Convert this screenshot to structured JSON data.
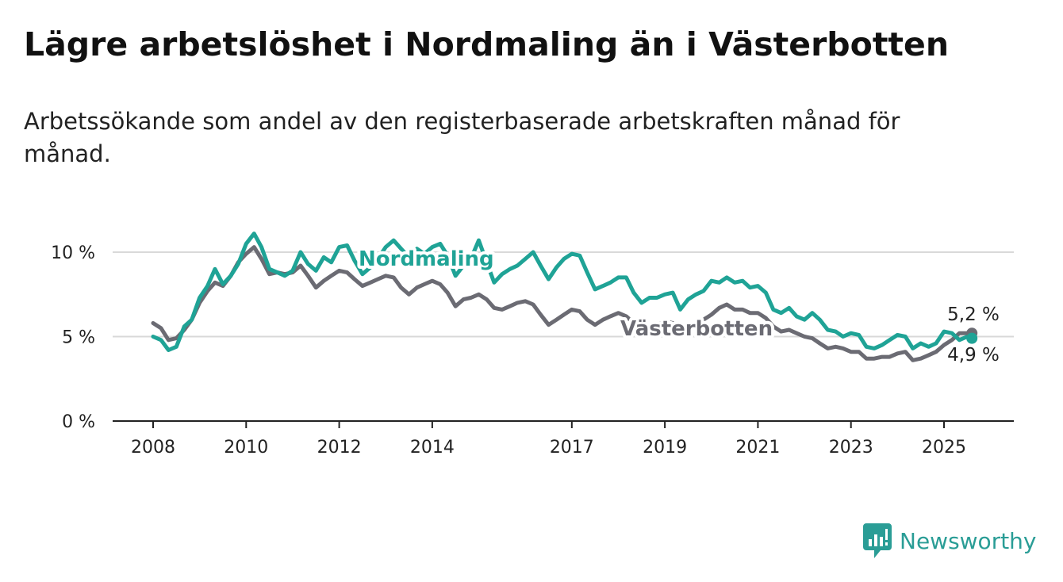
{
  "title": "Lägre arbetslöshet i Nordmaling än i Västerbotten",
  "subtitle": "Arbetssökande som andel av den registerbaserade arbetskraften månad för månad.",
  "brand": "Newsworthy",
  "colors": {
    "nordmaling": "#1fa396",
    "vasterbotten": "#6b6b73",
    "grid": "#d9d9d9",
    "axis": "#222222"
  },
  "chart_data": {
    "type": "line",
    "title": "Lägre arbetslöshet i Nordmaling än i Västerbotten",
    "subtitle": "Arbetssökande som andel av den registerbaserade arbetskraften månad för månad.",
    "xlabel": "",
    "ylabel": "",
    "xlim": [
      2007.6,
      2026.5
    ],
    "ylim": [
      0,
      10
    ],
    "x_ticks": [
      2008,
      2010,
      2012,
      2014,
      2017,
      2019,
      2021,
      2023,
      2025
    ],
    "x_tick_labels": [
      "2008",
      "2010",
      "2012",
      "2014",
      "2017",
      "2019",
      "2021",
      "2023",
      "2025"
    ],
    "y_ticks": [
      0,
      5,
      10
    ],
    "y_tick_labels": [
      "0 %",
      "5 %",
      "10 %"
    ],
    "grid": "horizontal",
    "legend": "inline labels",
    "series": [
      {
        "name": "Nordmaling",
        "end_label": "4,9 %",
        "points": [
          [
            2008.0,
            5.0
          ],
          [
            2008.17,
            4.8
          ],
          [
            2008.33,
            4.2
          ],
          [
            2008.5,
            4.4
          ],
          [
            2008.67,
            5.6
          ],
          [
            2008.83,
            6.0
          ],
          [
            2009.0,
            7.3
          ],
          [
            2009.17,
            8.0
          ],
          [
            2009.33,
            9.0
          ],
          [
            2009.5,
            8.1
          ],
          [
            2009.67,
            8.6
          ],
          [
            2009.83,
            9.3
          ],
          [
            2010.0,
            10.5
          ],
          [
            2010.17,
            11.1
          ],
          [
            2010.33,
            10.3
          ],
          [
            2010.5,
            9.0
          ],
          [
            2010.67,
            8.8
          ],
          [
            2010.83,
            8.6
          ],
          [
            2011.0,
            8.9
          ],
          [
            2011.17,
            10.0
          ],
          [
            2011.33,
            9.3
          ],
          [
            2011.5,
            8.9
          ],
          [
            2011.67,
            9.7
          ],
          [
            2011.83,
            9.4
          ],
          [
            2012.0,
            10.3
          ],
          [
            2012.17,
            10.4
          ],
          [
            2012.33,
            9.5
          ],
          [
            2012.5,
            8.7
          ],
          [
            2012.67,
            9.1
          ],
          [
            2012.83,
            9.6
          ],
          [
            2013.0,
            10.3
          ],
          [
            2013.17,
            10.7
          ],
          [
            2013.33,
            10.2
          ],
          [
            2013.5,
            9.7
          ],
          [
            2013.67,
            10.2
          ],
          [
            2013.83,
            9.9
          ],
          [
            2014.0,
            10.3
          ],
          [
            2014.17,
            10.5
          ],
          [
            2014.33,
            9.8
          ],
          [
            2014.5,
            8.6
          ],
          [
            2014.67,
            9.2
          ],
          [
            2014.83,
            9.6
          ],
          [
            2015.0,
            10.7
          ],
          [
            2015.17,
            9.4
          ],
          [
            2015.33,
            8.2
          ],
          [
            2015.5,
            8.7
          ],
          [
            2015.67,
            9.0
          ],
          [
            2015.83,
            9.2
          ],
          [
            2016.0,
            9.6
          ],
          [
            2016.17,
            10.0
          ],
          [
            2016.33,
            9.2
          ],
          [
            2016.5,
            8.4
          ],
          [
            2016.67,
            9.1
          ],
          [
            2016.83,
            9.6
          ],
          [
            2017.0,
            9.9
          ],
          [
            2017.17,
            9.8
          ],
          [
            2017.33,
            8.8
          ],
          [
            2017.5,
            7.8
          ],
          [
            2017.67,
            8.0
          ],
          [
            2017.83,
            8.2
          ],
          [
            2018.0,
            8.5
          ],
          [
            2018.17,
            8.5
          ],
          [
            2018.33,
            7.6
          ],
          [
            2018.5,
            7.0
          ],
          [
            2018.67,
            7.3
          ],
          [
            2018.83,
            7.3
          ],
          [
            2019.0,
            7.5
          ],
          [
            2019.17,
            7.6
          ],
          [
            2019.33,
            6.6
          ],
          [
            2019.5,
            7.2
          ],
          [
            2019.67,
            7.5
          ],
          [
            2019.83,
            7.7
          ],
          [
            2020.0,
            8.3
          ],
          [
            2020.17,
            8.2
          ],
          [
            2020.33,
            8.5
          ],
          [
            2020.5,
            8.2
          ],
          [
            2020.67,
            8.3
          ],
          [
            2020.83,
            7.9
          ],
          [
            2021.0,
            8.0
          ],
          [
            2021.17,
            7.6
          ],
          [
            2021.33,
            6.6
          ],
          [
            2021.5,
            6.4
          ],
          [
            2021.67,
            6.7
          ],
          [
            2021.83,
            6.2
          ],
          [
            2022.0,
            6.0
          ],
          [
            2022.17,
            6.4
          ],
          [
            2022.33,
            6.0
          ],
          [
            2022.5,
            5.4
          ],
          [
            2022.67,
            5.3
          ],
          [
            2022.83,
            5.0
          ],
          [
            2023.0,
            5.2
          ],
          [
            2023.17,
            5.1
          ],
          [
            2023.33,
            4.4
          ],
          [
            2023.5,
            4.3
          ],
          [
            2023.67,
            4.5
          ],
          [
            2023.83,
            4.8
          ],
          [
            2024.0,
            5.1
          ],
          [
            2024.17,
            5.0
          ],
          [
            2024.33,
            4.3
          ],
          [
            2024.5,
            4.6
          ],
          [
            2024.67,
            4.4
          ],
          [
            2024.83,
            4.6
          ],
          [
            2025.0,
            5.3
          ],
          [
            2025.17,
            5.2
          ],
          [
            2025.33,
            4.8
          ],
          [
            2025.5,
            5.0
          ],
          [
            2025.6,
            4.9
          ]
        ]
      },
      {
        "name": "Västerbotten",
        "end_label": "5,2 %",
        "points": [
          [
            2008.0,
            5.8
          ],
          [
            2008.17,
            5.5
          ],
          [
            2008.33,
            4.8
          ],
          [
            2008.5,
            4.9
          ],
          [
            2008.67,
            5.4
          ],
          [
            2008.83,
            6.0
          ],
          [
            2009.0,
            7.0
          ],
          [
            2009.17,
            7.7
          ],
          [
            2009.33,
            8.2
          ],
          [
            2009.5,
            8.0
          ],
          [
            2009.67,
            8.6
          ],
          [
            2009.83,
            9.4
          ],
          [
            2010.0,
            9.9
          ],
          [
            2010.17,
            10.3
          ],
          [
            2010.33,
            9.6
          ],
          [
            2010.5,
            8.7
          ],
          [
            2010.67,
            8.8
          ],
          [
            2010.83,
            8.7
          ],
          [
            2011.0,
            8.8
          ],
          [
            2011.17,
            9.2
          ],
          [
            2011.33,
            8.6
          ],
          [
            2011.5,
            7.9
          ],
          [
            2011.67,
            8.3
          ],
          [
            2011.83,
            8.6
          ],
          [
            2012.0,
            8.9
          ],
          [
            2012.17,
            8.8
          ],
          [
            2012.33,
            8.4
          ],
          [
            2012.5,
            8.0
          ],
          [
            2012.67,
            8.2
          ],
          [
            2012.83,
            8.4
          ],
          [
            2013.0,
            8.6
          ],
          [
            2013.17,
            8.5
          ],
          [
            2013.33,
            7.9
          ],
          [
            2013.5,
            7.5
          ],
          [
            2013.67,
            7.9
          ],
          [
            2013.83,
            8.1
          ],
          [
            2014.0,
            8.3
          ],
          [
            2014.17,
            8.1
          ],
          [
            2014.33,
            7.6
          ],
          [
            2014.5,
            6.8
          ],
          [
            2014.67,
            7.2
          ],
          [
            2014.83,
            7.3
          ],
          [
            2015.0,
            7.5
          ],
          [
            2015.17,
            7.2
          ],
          [
            2015.33,
            6.7
          ],
          [
            2015.5,
            6.6
          ],
          [
            2015.67,
            6.8
          ],
          [
            2015.83,
            7.0
          ],
          [
            2016.0,
            7.1
          ],
          [
            2016.17,
            6.9
          ],
          [
            2016.33,
            6.3
          ],
          [
            2016.5,
            5.7
          ],
          [
            2016.67,
            6.0
          ],
          [
            2016.83,
            6.3
          ],
          [
            2017.0,
            6.6
          ],
          [
            2017.17,
            6.5
          ],
          [
            2017.33,
            6.0
          ],
          [
            2017.5,
            5.7
          ],
          [
            2017.67,
            6.0
          ],
          [
            2017.83,
            6.2
          ],
          [
            2018.0,
            6.4
          ],
          [
            2018.17,
            6.2
          ],
          [
            2018.33,
            5.8
          ],
          [
            2018.5,
            5.3
          ],
          [
            2018.67,
            5.5
          ],
          [
            2018.83,
            5.7
          ],
          [
            2019.0,
            5.9
          ],
          [
            2019.17,
            5.8
          ],
          [
            2019.33,
            5.4
          ],
          [
            2019.5,
            5.6
          ],
          [
            2019.67,
            5.8
          ],
          [
            2019.83,
            6.0
          ],
          [
            2020.0,
            6.3
          ],
          [
            2020.17,
            6.7
          ],
          [
            2020.33,
            6.9
          ],
          [
            2020.5,
            6.6
          ],
          [
            2020.67,
            6.6
          ],
          [
            2020.83,
            6.4
          ],
          [
            2021.0,
            6.4
          ],
          [
            2021.17,
            6.1
          ],
          [
            2021.33,
            5.6
          ],
          [
            2021.5,
            5.3
          ],
          [
            2021.67,
            5.4
          ],
          [
            2021.83,
            5.2
          ],
          [
            2022.0,
            5.0
          ],
          [
            2022.17,
            4.9
          ],
          [
            2022.33,
            4.6
          ],
          [
            2022.5,
            4.3
          ],
          [
            2022.67,
            4.4
          ],
          [
            2022.83,
            4.3
          ],
          [
            2023.0,
            4.1
          ],
          [
            2023.17,
            4.1
          ],
          [
            2023.33,
            3.7
          ],
          [
            2023.5,
            3.7
          ],
          [
            2023.67,
            3.8
          ],
          [
            2023.83,
            3.8
          ],
          [
            2024.0,
            4.0
          ],
          [
            2024.17,
            4.1
          ],
          [
            2024.33,
            3.6
          ],
          [
            2024.5,
            3.7
          ],
          [
            2024.67,
            3.9
          ],
          [
            2024.83,
            4.1
          ],
          [
            2025.0,
            4.5
          ],
          [
            2025.17,
            4.8
          ],
          [
            2025.33,
            5.2
          ],
          [
            2025.5,
            5.2
          ],
          [
            2025.6,
            5.2
          ]
        ]
      }
    ]
  }
}
